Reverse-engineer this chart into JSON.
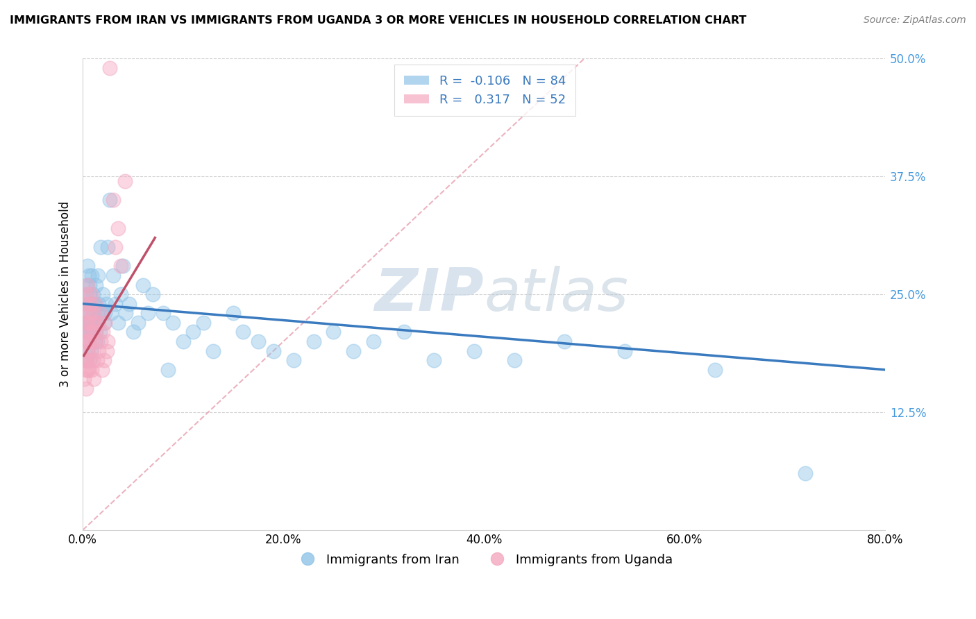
{
  "title": "IMMIGRANTS FROM IRAN VS IMMIGRANTS FROM UGANDA 3 OR MORE VEHICLES IN HOUSEHOLD CORRELATION CHART",
  "source": "Source: ZipAtlas.com",
  "ylabel": "3 or more Vehicles in Household",
  "xlim": [
    0.0,
    0.8
  ],
  "ylim": [
    0.0,
    0.5
  ],
  "xticks": [
    0.0,
    0.2,
    0.4,
    0.6,
    0.8
  ],
  "xtick_labels": [
    "0.0%",
    "20.0%",
    "40.0%",
    "60.0%",
    "80.0%"
  ],
  "yticks": [
    0.0,
    0.125,
    0.25,
    0.375,
    0.5
  ],
  "ytick_labels_right": [
    "",
    "12.5%",
    "25.0%",
    "37.5%",
    "50.0%"
  ],
  "legend_iran_label": "Immigrants from Iran",
  "legend_uganda_label": "Immigrants from Uganda",
  "iran_R": -0.106,
  "iran_N": 84,
  "uganda_R": 0.317,
  "uganda_N": 52,
  "iran_color": "#90c4e8",
  "uganda_color": "#f4a8c0",
  "iran_line_color": "#3a7abf",
  "uganda_line_color": "#c0506a",
  "ref_line_color": "#e8a0b0",
  "watermark_zip": "ZIP",
  "watermark_atlas": "atlas",
  "iran_x": [
    0.002,
    0.003,
    0.003,
    0.004,
    0.004,
    0.004,
    0.005,
    0.005,
    0.005,
    0.005,
    0.006,
    0.006,
    0.006,
    0.006,
    0.007,
    0.007,
    0.007,
    0.007,
    0.008,
    0.008,
    0.008,
    0.009,
    0.009,
    0.009,
    0.01,
    0.01,
    0.01,
    0.011,
    0.011,
    0.012,
    0.012,
    0.013,
    0.013,
    0.014,
    0.014,
    0.015,
    0.015,
    0.016,
    0.017,
    0.018,
    0.019,
    0.02,
    0.021,
    0.022,
    0.023,
    0.025,
    0.027,
    0.028,
    0.03,
    0.032,
    0.035,
    0.038,
    0.04,
    0.043,
    0.046,
    0.05,
    0.055,
    0.06,
    0.065,
    0.07,
    0.08,
    0.085,
    0.09,
    0.1,
    0.11,
    0.12,
    0.13,
    0.15,
    0.16,
    0.175,
    0.19,
    0.21,
    0.23,
    0.25,
    0.27,
    0.29,
    0.32,
    0.35,
    0.39,
    0.43,
    0.48,
    0.54,
    0.63,
    0.72
  ],
  "iran_y": [
    0.22,
    0.25,
    0.18,
    0.26,
    0.21,
    0.24,
    0.28,
    0.22,
    0.19,
    0.23,
    0.27,
    0.21,
    0.24,
    0.2,
    0.26,
    0.22,
    0.18,
    0.25,
    0.24,
    0.21,
    0.23,
    0.22,
    0.27,
    0.19,
    0.24,
    0.21,
    0.25,
    0.22,
    0.23,
    0.2,
    0.24,
    0.21,
    0.26,
    0.23,
    0.2,
    0.22,
    0.27,
    0.24,
    0.21,
    0.3,
    0.23,
    0.25,
    0.22,
    0.23,
    0.24,
    0.3,
    0.35,
    0.23,
    0.27,
    0.24,
    0.22,
    0.25,
    0.28,
    0.23,
    0.24,
    0.21,
    0.22,
    0.26,
    0.23,
    0.25,
    0.23,
    0.17,
    0.22,
    0.2,
    0.21,
    0.22,
    0.19,
    0.23,
    0.21,
    0.2,
    0.19,
    0.18,
    0.2,
    0.21,
    0.19,
    0.2,
    0.21,
    0.18,
    0.19,
    0.18,
    0.2,
    0.19,
    0.17,
    0.06
  ],
  "uganda_x": [
    0.001,
    0.001,
    0.002,
    0.002,
    0.002,
    0.003,
    0.003,
    0.003,
    0.003,
    0.004,
    0.004,
    0.004,
    0.005,
    0.005,
    0.005,
    0.005,
    0.006,
    0.006,
    0.006,
    0.007,
    0.007,
    0.007,
    0.008,
    0.008,
    0.008,
    0.009,
    0.009,
    0.01,
    0.01,
    0.01,
    0.011,
    0.011,
    0.012,
    0.012,
    0.013,
    0.014,
    0.015,
    0.016,
    0.017,
    0.018,
    0.019,
    0.02,
    0.021,
    0.022,
    0.024,
    0.025,
    0.027,
    0.03,
    0.032,
    0.035,
    0.038,
    0.042
  ],
  "uganda_y": [
    0.2,
    0.16,
    0.22,
    0.18,
    0.24,
    0.2,
    0.17,
    0.23,
    0.15,
    0.21,
    0.18,
    0.25,
    0.22,
    0.19,
    0.26,
    0.17,
    0.23,
    0.2,
    0.17,
    0.24,
    0.21,
    0.18,
    0.22,
    0.19,
    0.25,
    0.2,
    0.17,
    0.23,
    0.21,
    0.18,
    0.22,
    0.16,
    0.2,
    0.24,
    0.21,
    0.18,
    0.22,
    0.19,
    0.23,
    0.2,
    0.17,
    0.21,
    0.18,
    0.22,
    0.19,
    0.2,
    0.49,
    0.35,
    0.3,
    0.32,
    0.28,
    0.37
  ],
  "iran_line_x0": 0.0,
  "iran_line_x1": 0.8,
  "iran_line_y0": 0.24,
  "iran_line_y1": 0.17,
  "uganda_line_x0": 0.001,
  "uganda_line_x1": 0.072,
  "uganda_line_y0": 0.185,
  "uganda_line_y1": 0.31,
  "ref_line_x0": 0.0,
  "ref_line_x1": 0.5,
  "ref_line_y0": 0.0,
  "ref_line_y1": 0.5
}
